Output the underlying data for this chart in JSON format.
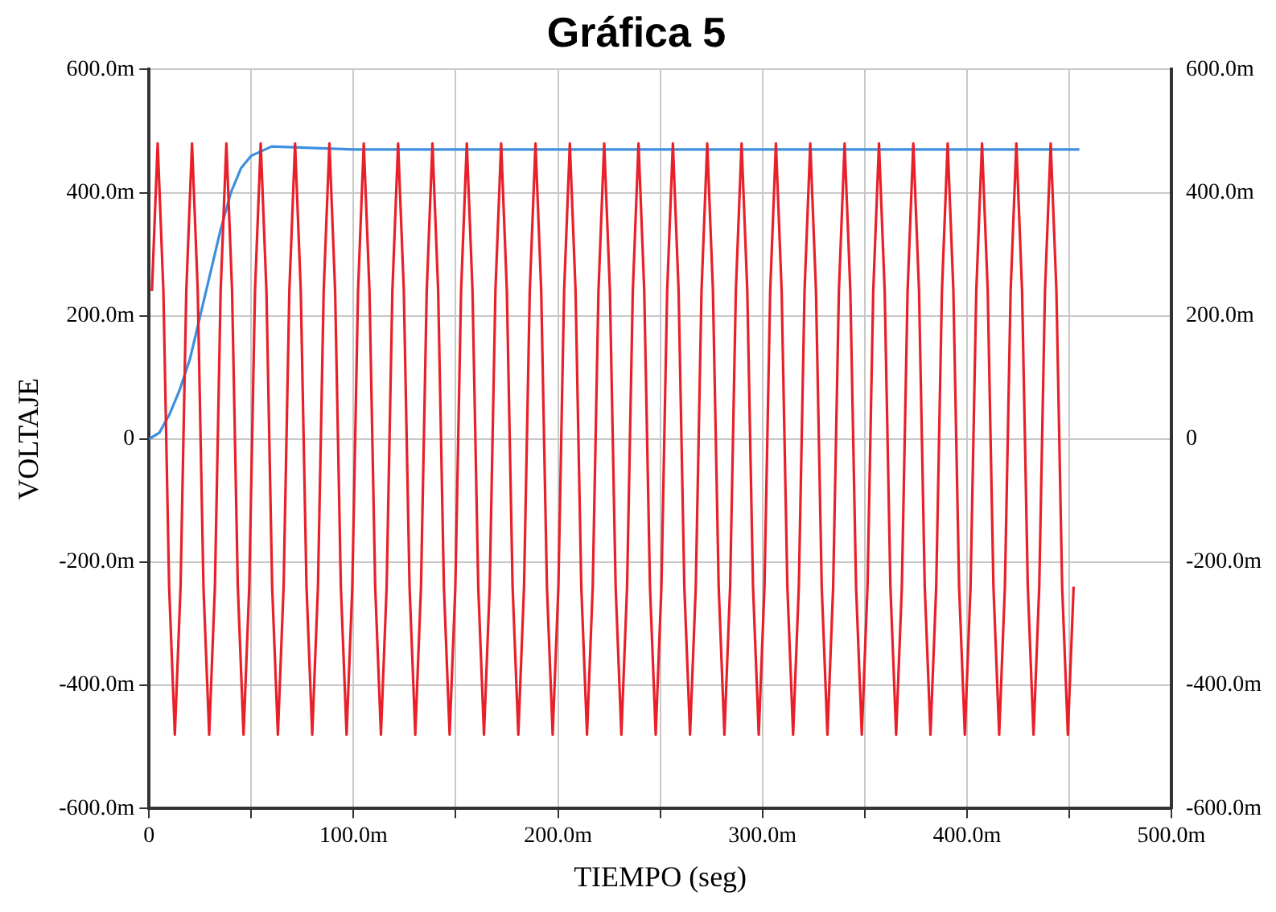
{
  "chart_data": {
    "type": "line",
    "title": "Gráfica 5",
    "xlabel": "TIEMPO (seg)",
    "ylabel": "VOLTAJE",
    "xlim": [
      0,
      500
    ],
    "xticks": [
      0,
      {
        "value": 50,
        "label": null
      },
      {
        "value": 100,
        "label": "100.0m"
      },
      {
        "value": 150,
        "label": null
      },
      {
        "value": 200,
        "label": "200.0m"
      },
      {
        "value": 250,
        "label": null
      },
      {
        "value": 300,
        "label": "300.0m"
      },
      {
        "value": 350,
        "label": null
      },
      {
        "value": 400,
        "label": "400.0m"
      },
      {
        "value": 450,
        "label": null
      },
      {
        "value": 500,
        "label": "500.0m"
      }
    ],
    "ylim": [
      -600,
      600
    ],
    "yticks": [
      {
        "value": -600,
        "label": "-600.0m"
      },
      {
        "value": -400,
        "label": "-400.0m"
      },
      {
        "value": -200,
        "label": "-200.0m"
      },
      0,
      {
        "value": 200,
        "label": "200.0m"
      },
      {
        "value": 400,
        "label": "400.0m"
      },
      {
        "value": 600,
        "label": "600.0m"
      }
    ],
    "y2lim": [
      -600,
      600
    ],
    "y2ticks": [
      {
        "value": -600,
        "label": "-600.0m"
      },
      {
        "value": -400,
        "label": "-400.0m"
      },
      {
        "value": -200,
        "label": "-200.0m"
      },
      0,
      {
        "value": 200,
        "label": "200.0m"
      },
      {
        "value": 400,
        "label": "400.0m"
      },
      {
        "value": 600,
        "label": "600.0m"
      }
    ],
    "grid": true,
    "legend": false,
    "marker": "none",
    "line_style": "solid",
    "series": [
      {
        "color": "#e8202a",
        "x": [
          1.4,
          4.2,
          7.0,
          9.8,
          12.6,
          15.4,
          18.2,
          21.0,
          23.8,
          26.6,
          29.4,
          32.2,
          35.0,
          37.8,
          40.6,
          43.4,
          46.2,
          49.0,
          51.8,
          54.6,
          57.4,
          60.2,
          63.0,
          65.8,
          68.6,
          71.4,
          74.2,
          77.0,
          79.8,
          82.6,
          85.4,
          88.2,
          91.0,
          93.8,
          96.6,
          99.4,
          102.2,
          105.0,
          107.8,
          110.6,
          113.4,
          116.2,
          119.0,
          121.8,
          124.6,
          127.4,
          130.2,
          133.0,
          135.8,
          138.6,
          141.4,
          144.2,
          147.0,
          149.8,
          152.6,
          155.4,
          158.2,
          161.0,
          163.8,
          166.6,
          169.4,
          172.2,
          175.0,
          177.8,
          180.6,
          183.4,
          186.2,
          189.0,
          191.8,
          194.6,
          197.4,
          200.2,
          203.0,
          205.8,
          208.6,
          211.4,
          214.2,
          217.0,
          219.8,
          222.6,
          225.4,
          228.2,
          231.0,
          233.8,
          236.6,
          239.4,
          242.2,
          245.0,
          247.8,
          250.6,
          253.4,
          256.2,
          259.0,
          261.8,
          264.6,
          267.4,
          270.2,
          273.0,
          275.8,
          278.6,
          281.4,
          284.2,
          287.0,
          289.8,
          292.6,
          295.4,
          298.2,
          301.0,
          303.8,
          306.6,
          309.4,
          312.2,
          315.0,
          317.8,
          320.6,
          323.4,
          326.2,
          329.0,
          331.8,
          334.6,
          337.4,
          340.2,
          343.0,
          345.8,
          348.6,
          351.4,
          354.2,
          357.0,
          359.8,
          362.6,
          365.4,
          368.2,
          371.0,
          373.8,
          376.6,
          379.4,
          382.2,
          385.0,
          387.8,
          390.6,
          393.4,
          396.2,
          399.0,
          401.8,
          404.6,
          407.4,
          410.2,
          413.0,
          415.8,
          418.6,
          421.4,
          424.2,
          427.0,
          429.8,
          432.6,
          435.4,
          438.2,
          441.0,
          443.8,
          446.6,
          449.4,
          452.2
        ],
        "values": [
          240,
          480,
          240,
          -240,
          -480,
          -240,
          240,
          480,
          240,
          -240,
          -480,
          -240,
          240,
          480,
          240,
          -240,
          -480,
          -240,
          240,
          480,
          240,
          -240,
          -480,
          -240,
          240,
          480,
          240,
          -240,
          -480,
          -240,
          240,
          480,
          240,
          -240,
          -480,
          -240,
          240,
          480,
          240,
          -240,
          -480,
          -240,
          240,
          480,
          240,
          -240,
          -480,
          -240,
          240,
          480,
          240,
          -240,
          -480,
          -240,
          240,
          480,
          240,
          -240,
          -480,
          -240,
          240,
          480,
          240,
          -240,
          -480,
          -240,
          240,
          480,
          240,
          -240,
          -480,
          -240,
          240,
          480,
          240,
          -240,
          -480,
          -240,
          240,
          480,
          240,
          -240,
          -480,
          -240,
          240,
          480,
          240,
          -240,
          -480,
          -240,
          240,
          480,
          240,
          -240,
          -480,
          -240,
          240,
          480,
          240,
          -240,
          -480,
          -240,
          240,
          480,
          240,
          -240,
          -480,
          -240,
          240,
          480,
          240,
          -240,
          -480,
          -240,
          240,
          480,
          240,
          -240,
          -480,
          -240,
          240,
          480,
          240,
          -240,
          -480,
          -240,
          240,
          480,
          240,
          -240,
          -480,
          -240,
          240,
          480,
          240,
          -240,
          -480,
          -240,
          240,
          480,
          240,
          -240,
          -480,
          -240,
          240,
          480,
          240,
          -240,
          -480,
          -240,
          240,
          480,
          240,
          -240,
          -480,
          -240,
          240,
          480,
          240,
          -240,
          -480,
          -240
        ]
      },
      {
        "color": "#3d8fe0",
        "x": [
          0,
          5,
          10,
          15,
          20,
          25,
          30,
          35,
          40,
          45,
          50,
          60,
          100,
          200,
          300,
          400,
          455
        ],
        "values": [
          0,
          10,
          40,
          80,
          130,
          200,
          270,
          340,
          400,
          440,
          460,
          475,
          470,
          470,
          470,
          470,
          470
        ]
      }
    ]
  }
}
